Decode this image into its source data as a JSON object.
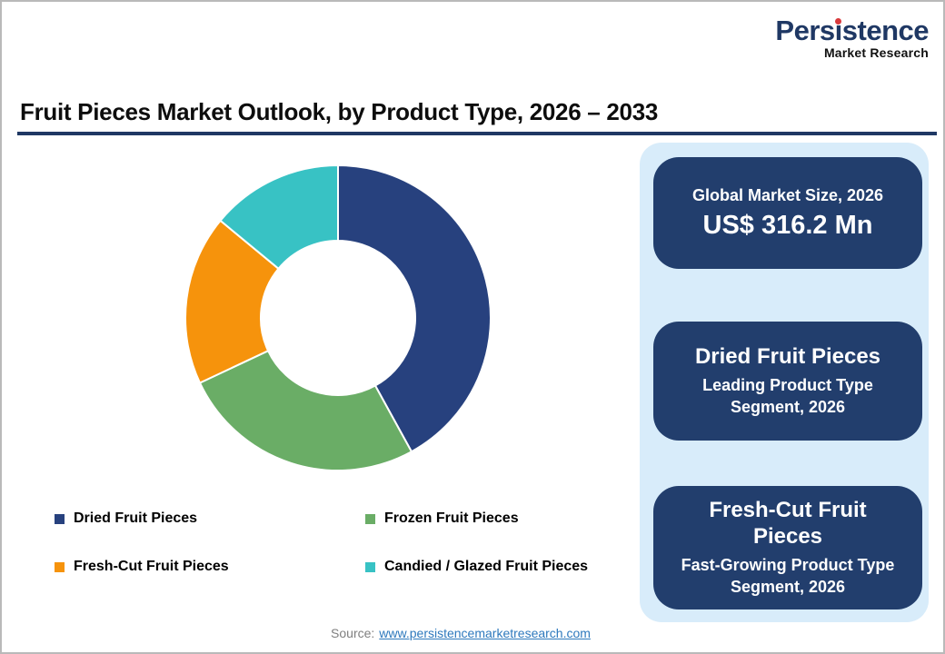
{
  "logo": {
    "name_pre": "Pers",
    "name_i": "ı",
    "name_post": "stence",
    "full_name": "Persistence",
    "tagline": "Market Research",
    "brand_color": "#1F3864",
    "dot_color": "#D93A3C"
  },
  "title": "Fruit Pieces Market Outlook, by Product Type, 2026 – 2033",
  "chart_data": {
    "type": "pie",
    "subtype": "donut",
    "labels": [
      "Dried Fruit Pieces",
      "Frozen Fruit Pieces",
      "Fresh-Cut Fruit Pieces",
      "Candied / Glazed Fruit Pieces"
    ],
    "values_pct": [
      42,
      26,
      18,
      14
    ],
    "colors": [
      "#27417E",
      "#6AAD66",
      "#F6930C",
      "#38C2C4"
    ],
    "start_angle_deg": 0,
    "direction": "clockwise",
    "inner_radius_ratio": 0.5,
    "segment_gap_color": "#ffffff",
    "legend_position": "bottom, two columns"
  },
  "panel": {
    "bg_color": "#D8ECFA",
    "card_color": "#223E6D",
    "cards": [
      {
        "line1": "Global Market Size, 2026",
        "line2": "US$ 316.2 Mn"
      },
      {
        "title": "Dried Fruit Pieces",
        "subtitle": "Leading Product Type Segment, 2026"
      },
      {
        "title": "Fresh-Cut Fruit Pieces",
        "subtitle": "Fast-Growing Product Type Segment, 2026"
      }
    ]
  },
  "source": {
    "label": "Source:",
    "link_text": "www.persistencemarketresearch.com"
  }
}
